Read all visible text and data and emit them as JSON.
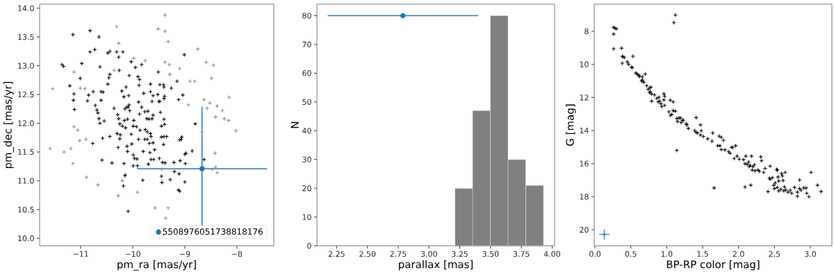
{
  "chart_data": [
    {
      "type": "scatter",
      "xlabel": "pm_ra [mas/yr]",
      "ylabel": "pm_dec [mas/yr]",
      "xlim": [
        -11.79,
        -7.29
      ],
      "ylim": [
        9.87,
        14.07
      ],
      "xticks": [
        {
          "value": -11,
          "label": "−11"
        },
        {
          "value": -10,
          "label": "−10"
        },
        {
          "value": -9,
          "label": "−9"
        },
        {
          "value": -8,
          "label": "−8"
        }
      ],
      "yticks": [
        {
          "value": 10,
          "label": "10.0"
        },
        10.5,
        {
          "value": 11,
          "label": "11.0"
        },
        11.5,
        {
          "value": 12,
          "label": "12.0"
        },
        12.5,
        {
          "value": 13,
          "label": "13.0"
        },
        13.5,
        {
          "value": 14,
          "label": "14.0"
        }
      ],
      "legend": "bottom right",
      "series": [
        {
          "color": "#8c8c8c",
          "marker": "cross",
          "x": [
            -11.54,
            -11.59,
            -11.32,
            -11.19,
            -11.15,
            -11.13,
            -11.13,
            -11.06,
            -11.02,
            -11.01,
            -10.92,
            -10.9,
            -10.89,
            -10.67,
            -10.36,
            -10.31,
            -10.27,
            -10.28,
            -10.2,
            -10.14,
            -9.98,
            -9.91,
            -9.76,
            -9.57,
            -9.51,
            -9.38,
            -9.38,
            -9.32,
            -9.38,
            -9.3,
            -9.29,
            -9.32,
            -9.37,
            -9.44,
            -9.1,
            -8.93,
            -8.9,
            -8.81,
            -8.75,
            -8.67,
            -8.63,
            -8.59,
            -8.57,
            -8.52,
            -8.49,
            -8.45,
            -8.38,
            -8.42,
            -8.41,
            -8.38,
            -8.47,
            -8.41,
            -8.28,
            -8.24,
            -8.16,
            -8.15,
            -8.02
          ],
          "values": [
            12.6,
            11.56,
            11.5,
            11.56,
            11.3,
            12.89,
            11.94,
            11.88,
            11.7,
            12.61,
            12.6,
            11.72,
            11.06,
            10.93,
            12.92,
            13.68,
            13.39,
            10.74,
            11.0,
            11.11,
            13.13,
            10.8,
            13.09,
            10.53,
            13.64,
            13.88,
            13.6,
            13.42,
            13.06,
            13.02,
            12.85,
            10.53,
            10.35,
            11.2,
            12.95,
            12.32,
            12.73,
            12.73,
            13.29,
            11.85,
            12.41,
            13.06,
            12.26,
            12.35,
            12.78,
            13.01,
            12.3,
            11.48,
            11.24,
            11.14,
            11.2,
            12.11,
            12.22,
            12.08,
            12.05,
            12.45,
            11.87
          ]
        },
        {
          "color": "#000000",
          "marker": "cross",
          "x": [
            -11.15,
            -11.36,
            -11.33,
            -11.21,
            -11.13,
            -11.14,
            -11.12,
            -11.01,
            -10.98,
            -10.82,
            -10.82,
            -10.73,
            -10.85,
            -10.87,
            -10.76,
            -10.77,
            -10.72,
            -10.69,
            -10.67,
            -10.65,
            -10.63,
            -10.65,
            -10.63,
            -10.61,
            -10.57,
            -10.61,
            -10.58,
            -10.59,
            -10.48,
            -10.44,
            -10.44,
            -10.46,
            -10.48,
            -10.55,
            -10.36,
            -10.44,
            -10.4,
            -10.31,
            -10.27,
            -10.26,
            -10.29,
            -10.27,
            -10.3,
            -10.24,
            -10.28,
            -10.25,
            -10.25,
            -10.2,
            -10.17,
            -10.19,
            -10.21,
            -10.17,
            -10.15,
            -10.16,
            -10.14,
            -10.15,
            -10.18,
            -10.11,
            -10.1,
            -10.1,
            -10.12,
            -10.09,
            -10.06,
            -10.07,
            -10.03,
            -10.09,
            -10.13,
            -10.07,
            -10.08,
            -10.03,
            -9.98,
            -9.99,
            -10.02,
            -9.99,
            -9.97,
            -9.99,
            -9.95,
            -9.9,
            -9.87,
            -9.88,
            -9.83,
            -9.89,
            -9.87,
            -9.86,
            -9.93,
            -9.89,
            -9.92,
            -9.91,
            -9.8,
            -9.81,
            -9.79,
            -9.83,
            -9.77,
            -9.73,
            -9.76,
            -9.72,
            -9.72,
            -9.77,
            -9.68,
            -9.67,
            -9.7,
            -9.66,
            -9.66,
            -9.61,
            -9.63,
            -9.61,
            -9.63,
            -9.71,
            -9.69,
            -9.66,
            -9.65,
            -9.61,
            -9.65,
            -9.6,
            -9.58,
            -9.51,
            -9.48,
            -9.52,
            -9.5,
            -9.48,
            -9.47,
            -9.45,
            -9.45,
            -9.49,
            -9.45,
            -9.44,
            -9.41,
            -9.4,
            -9.39,
            -9.4,
            -9.4,
            -9.39,
            -9.4,
            -9.41,
            -9.43,
            -9.35,
            -9.38,
            -9.28,
            -9.26,
            -9.21,
            -9.2,
            -9.15,
            -9.12,
            -9.11,
            -9.12,
            -9.1,
            -9.09,
            -9.1,
            -9.06,
            -9.07,
            -9.04,
            -9.01,
            -9.0,
            -8.98,
            -8.99,
            -9.0,
            -8.86,
            -8.8,
            -8.63
          ],
          "values": [
            13.54,
            13.02,
            12.99,
            12.65,
            12.51,
            12.4,
            12.24,
            12.78,
            13.04,
            13.61,
            13.24,
            13.28,
            12.49,
            12.39,
            12.55,
            11.65,
            12.31,
            12.23,
            12.18,
            12.08,
            12.0,
            13.5,
            12.98,
            12.55,
            12.54,
            12.4,
            11.74,
            11.36,
            13.22,
            13.25,
            12.85,
            12.79,
            12.68,
            12.04,
            12.26,
            11.77,
            11.31,
            13.24,
            13.15,
            12.92,
            12.15,
            12.08,
            11.82,
            11.8,
            11.58,
            11.73,
            11.99,
            11.95,
            11.3,
            13.24,
            12.56,
            12.46,
            12.25,
            12.05,
            11.92,
            11.09,
            10.91,
            11.6,
            11.51,
            12.07,
            12.28,
            12.28,
            12.22,
            12.32,
            13.07,
            10.47,
            12.63,
            12.83,
            12.48,
            11.81,
            12.05,
            11.95,
            11.64,
            11.45,
            11.39,
            11.26,
            12.97,
            12.81,
            12.76,
            12.66,
            13.02,
            12.37,
            12.16,
            11.88,
            11.94,
            11.72,
            11.38,
            11.26,
            11.51,
            11.01,
            12.52,
            12.28,
            12.2,
            12.08,
            11.89,
            11.85,
            11.72,
            11.72,
            11.65,
            11.49,
            11.29,
            12.68,
            12.55,
            12.48,
            12.38,
            12.14,
            12.08,
            12.21,
            12.07,
            11.82,
            11.77,
            11.66,
            11.37,
            11.37,
            11.54,
            12.89,
            12.67,
            12.5,
            12.38,
            12.38,
            12.19,
            11.95,
            11.76,
            11.39,
            11.08,
            10.97,
            12.67,
            12.63,
            12.47,
            12.43,
            12.07,
            11.98,
            11.77,
            11.63,
            11.32,
            11.77,
            11.31,
            11.02,
            12.61,
            11.32,
            11.16,
            12.73,
            12.41,
            11.12,
            10.84,
            10.82,
            11.35,
            11.71,
            11.76,
            11.72,
            12.49,
            13.19,
            11.46,
            11.48,
            11.3,
            10.98,
            11.52,
            11.99,
            11.37
          ]
        },
        {
          "name": "5508976051738818176",
          "color": "#1f77b4",
          "marker": "circle",
          "x": [
            -8.67
          ],
          "values": [
            11.21
          ],
          "errors": [
            1.08
          ],
          "xerrors": [
            1.25
          ]
        }
      ]
    },
    {
      "type": "histogram",
      "xlabel": "parallax [mas]",
      "ylabel": "N",
      "xlim": [
        2.09,
        4.02
      ],
      "ylim": [
        0,
        84
      ],
      "xticks": [
        2.25,
        {
          "value": 2.5,
          "label": "2.50"
        },
        2.75,
        {
          "value": 3,
          "label": "3.00"
        },
        3.25,
        {
          "value": 3.5,
          "label": "3.50"
        },
        3.75,
        {
          "value": 4,
          "label": "4.00"
        }
      ],
      "yticks": [
        0,
        10,
        20,
        30,
        40,
        50,
        60,
        70,
        80
      ],
      "bins": [
        3.21,
        3.354,
        3.498,
        3.642,
        3.786,
        3.93
      ],
      "values": [
        20,
        47,
        80,
        30,
        21
      ],
      "color": "#808080",
      "series": [
        {
          "type": "scatter",
          "color": "#1f77b4",
          "marker": "circle",
          "x": [
            2.788
          ],
          "values": [
            80
          ],
          "xerrors": [
            0.61
          ]
        }
      ]
    },
    {
      "type": "scatter",
      "xlabel": "BP-RP color [mag]",
      "ylabel": "G [mag]",
      "xlim": [
        -0.01,
        3.3
      ],
      "ylim": [
        20.97,
        6.36
      ],
      "xticks": [
        {
          "value": 0,
          "label": "0.0"
        },
        0.5,
        {
          "value": 1,
          "label": "1.0"
        },
        1.5,
        {
          "value": 2,
          "label": "2.0"
        },
        2.5,
        {
          "value": 3,
          "label": "3.0"
        }
      ],
      "yticks": [
        8,
        10,
        12,
        14,
        16,
        18,
        20
      ],
      "series": [
        {
          "color": "#000000",
          "marker": "cross",
          "x": [
            0.26,
            0.28,
            0.3,
            0.26,
            0.26,
            1.12,
            1.1,
            0.37,
            0.38,
            0.39,
            0.41,
            0.38,
            0.53,
            0.45,
            0.47,
            0.51,
            0.52,
            0.57,
            0.59,
            0.61,
            0.62,
            0.66,
            0.66,
            0.65,
            0.7,
            0.68,
            0.72,
            0.74,
            0.76,
            0.77,
            0.76,
            0.79,
            0.78,
            0.79,
            0.83,
            0.86,
            0.88,
            0.9,
            0.89,
            0.92,
            0.93,
            0.96,
            0.97,
            0.96,
            0.97,
            1.03,
            1.05,
            1.09,
            1.07,
            1.05,
            1.09,
            1.12,
            1.14,
            1.15,
            1.17,
            1.19,
            1.2,
            1.22,
            1.23,
            1.27,
            1.28,
            1.3,
            1.14,
            1.39,
            1.41,
            1.41,
            1.43,
            1.47,
            1.47,
            1.48,
            1.51,
            1.57,
            1.63,
            1.64,
            1.66,
            1.71,
            1.73,
            1.74,
            1.76,
            1.76,
            1.79,
            1.81,
            1.86,
            1.88,
            1.9,
            1.92,
            1.94,
            1.96,
            1.98,
            2.01,
            2.07,
            2.09,
            2.1,
            2.09,
            2.12,
            2.14,
            2.15,
            2.16,
            2.17,
            2.18,
            2.19,
            2.2,
            2.22,
            2.23,
            2.27,
            2.29,
            2.31,
            2.32,
            2.35,
            2.37,
            2.41,
            2.44,
            2.43,
            2.44,
            2.47,
            2.49,
            2.5,
            2.51,
            2.53,
            2.54,
            2.55,
            2.54,
            2.56,
            2.56,
            2.59,
            2.6,
            2.61,
            2.62,
            2.63,
            2.64,
            2.65,
            2.66,
            2.69,
            2.72,
            2.74,
            2.78,
            2.82,
            2.85,
            2.85,
            2.87,
            2.91,
            2.94,
            2.95,
            2.98,
            2.82,
            3.01,
            3.1,
            3.15
          ],
          "values": [
            7.76,
            7.82,
            7.85,
            8.17,
            9.06,
            7.02,
            7.48,
            9.02,
            9.52,
            9.54,
            9.58,
            9.93,
            9.51,
            9.85,
            9.99,
            10.17,
            10.2,
            10.52,
            10.59,
            10.66,
            10.73,
            10.94,
            10.76,
            11.01,
            10.59,
            11.08,
            11.29,
            11.5,
            11.43,
            11.64,
            11.71,
            11.78,
            11.38,
            12.22,
            11.85,
            12.06,
            12.27,
            12.22,
            11.99,
            12.38,
            12.55,
            11.78,
            11.92,
            12.15,
            12.48,
            12.87,
            12.17,
            12.27,
            13.03,
            13.08,
            12.8,
            12.83,
            13.27,
            13.45,
            13.24,
            13.24,
            13.52,
            13.38,
            13.38,
            13.59,
            13.66,
            13.87,
            15.2,
            14.01,
            13.22,
            14.11,
            14.15,
            13.66,
            14.27,
            14.01,
            14.36,
            14.5,
            14.64,
            14.15,
            17.47,
            14.92,
            14.34,
            14.92,
            14.41,
            15.15,
            14.59,
            15.17,
            15.27,
            15.37,
            15.02,
            15.02,
            15.69,
            14.92,
            15.55,
            15.73,
            15.76,
            16.01,
            15.55,
            17.41,
            16.04,
            15.9,
            16.18,
            16.11,
            17.3,
            15.55,
            16.39,
            16.18,
            16.07,
            16.43,
            16.39,
            16.46,
            15.59,
            15.83,
            16.53,
            16.29,
            17.69,
            16.15,
            16.88,
            16.95,
            16.85,
            17.3,
            17.51,
            17.16,
            16.35,
            16.39,
            16.81,
            17.44,
            17.65,
            17.05,
            17.55,
            16.6,
            16.74,
            17.02,
            17.65,
            17.41,
            16.53,
            17.58,
            17.72,
            17.61,
            17.79,
            17.44,
            17.72,
            16.99,
            17.51,
            17.61,
            17.47,
            17.47,
            17.79,
            18.0,
            17.97,
            16.53,
            17.3,
            17.69
          ]
        },
        {
          "color": "#4a90d0",
          "marker": "none",
          "x": [
            0.13
          ],
          "values": [
            20.28
          ],
          "errors": [
            0.31
          ],
          "xerrors": [
            0.07
          ]
        }
      ]
    }
  ]
}
